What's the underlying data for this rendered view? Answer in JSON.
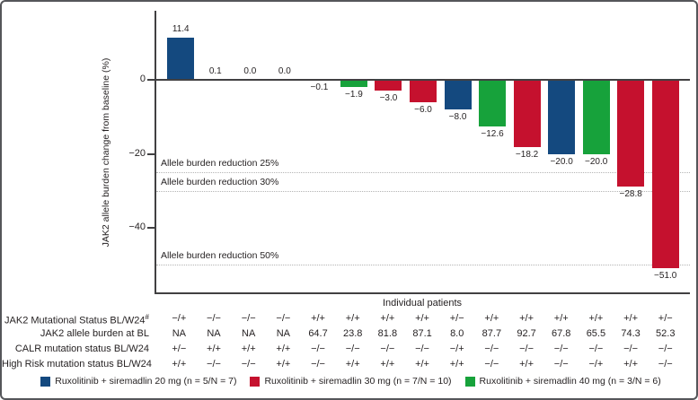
{
  "chart_data": {
    "type": "bar",
    "title": "",
    "ylabel": "JAK2 allele burden change from baseline (%)",
    "xlabel": "Individual patients",
    "ylim": [
      -58,
      19
    ],
    "grid": false,
    "yticks": [
      {
        "value": 0,
        "label": "0"
      },
      {
        "value": -20,
        "label": "−20"
      },
      {
        "value": -40,
        "label": "−40"
      }
    ],
    "reference_lines": [
      {
        "value": -25,
        "label": "Allele burden reduction 25%"
      },
      {
        "value": -30,
        "label": "Allele burden reduction 30%"
      },
      {
        "value": -50,
        "label": "Allele burden reduction 50%"
      }
    ],
    "patients": [
      {
        "value": 11.4,
        "label": "11.4",
        "dose": "20 mg"
      },
      {
        "value": 0.1,
        "label": "0.1",
        "dose": null
      },
      {
        "value": 0.0,
        "label": "0.0",
        "dose": null
      },
      {
        "value": 0.0,
        "label": "0.0",
        "dose": null
      },
      {
        "value": -0.1,
        "label": "−0.1",
        "dose": null
      },
      {
        "value": -1.9,
        "label": "−1.9",
        "dose": "40 mg"
      },
      {
        "value": -3.0,
        "label": "−3.0",
        "dose": "30 mg"
      },
      {
        "value": -6.0,
        "label": "−6.0",
        "dose": "30 mg"
      },
      {
        "value": -8.0,
        "label": "−8.0",
        "dose": "20 mg"
      },
      {
        "value": -12.6,
        "label": "−12.6",
        "dose": "40 mg"
      },
      {
        "value": -18.2,
        "label": "−18.2",
        "dose": "30 mg"
      },
      {
        "value": -20.0,
        "label": "−20.0",
        "dose": "20 mg"
      },
      {
        "value": -20.0,
        "label": "−20.0",
        "dose": "40 mg"
      },
      {
        "value": -28.8,
        "label": "−28.8",
        "dose": "30 mg"
      },
      {
        "value": -51.0,
        "label": "−51.0",
        "dose": "30 mg"
      }
    ]
  },
  "table": {
    "rows": [
      {
        "label": "JAK2 Mutational Status BL/W24",
        "label_sup": "#",
        "values": [
          "−/+",
          "−/−",
          "−/−",
          "−/−",
          "+/+",
          "+/+",
          "+/+",
          "+/+",
          "+/−",
          "+/+",
          "+/+",
          "+/+",
          "+/+",
          "+/+",
          "+/−"
        ]
      },
      {
        "label": "JAK2 allele burden at BL",
        "label_sup": "",
        "values": [
          "NA",
          "NA",
          "NA",
          "NA",
          "64.7",
          "23.8",
          "81.8",
          "87.1",
          "8.0",
          "87.7",
          "92.7",
          "67.8",
          "65.5",
          "74.3",
          "52.3"
        ]
      },
      {
        "label": "CALR mutation status BL/W24",
        "label_sup": "",
        "values": [
          "+/−",
          "+/+",
          "+/+",
          "+/+",
          "−/−",
          "−/−",
          "−/−",
          "−/−",
          "−/+",
          "−/−",
          "−/−",
          "−/−",
          "−/−",
          "−/−",
          "−/−"
        ]
      },
      {
        "label": "High Risk mutation status BL/W24",
        "label_sup": "",
        "values": [
          "+/+",
          "−/−",
          "−/−",
          "+/+",
          "−/−",
          "+/+",
          "+/+",
          "+/+",
          "+/+",
          "−/−",
          "+/+",
          "−/−",
          "−/+",
          "+/+",
          "−/−"
        ]
      }
    ]
  },
  "legend": {
    "items": [
      {
        "dose": "20 mg",
        "color": "#14497f",
        "label": "Ruxolitinib + siremadlin 20 mg (n = 5/N = 7)"
      },
      {
        "dose": "30 mg",
        "color": "#c5112e",
        "label": "Ruxolitinib + siremadlin 30 mg (n = 7/N = 10)"
      },
      {
        "dose": "40 mg",
        "color": "#17a23b",
        "label": "Ruxolitinib + siremadlin 40 mg (n = 3/N = 6)"
      }
    ]
  },
  "colors": {
    "axis": "#414042",
    "reference_line": "#b4b4b4",
    "text": "#231f20"
  }
}
